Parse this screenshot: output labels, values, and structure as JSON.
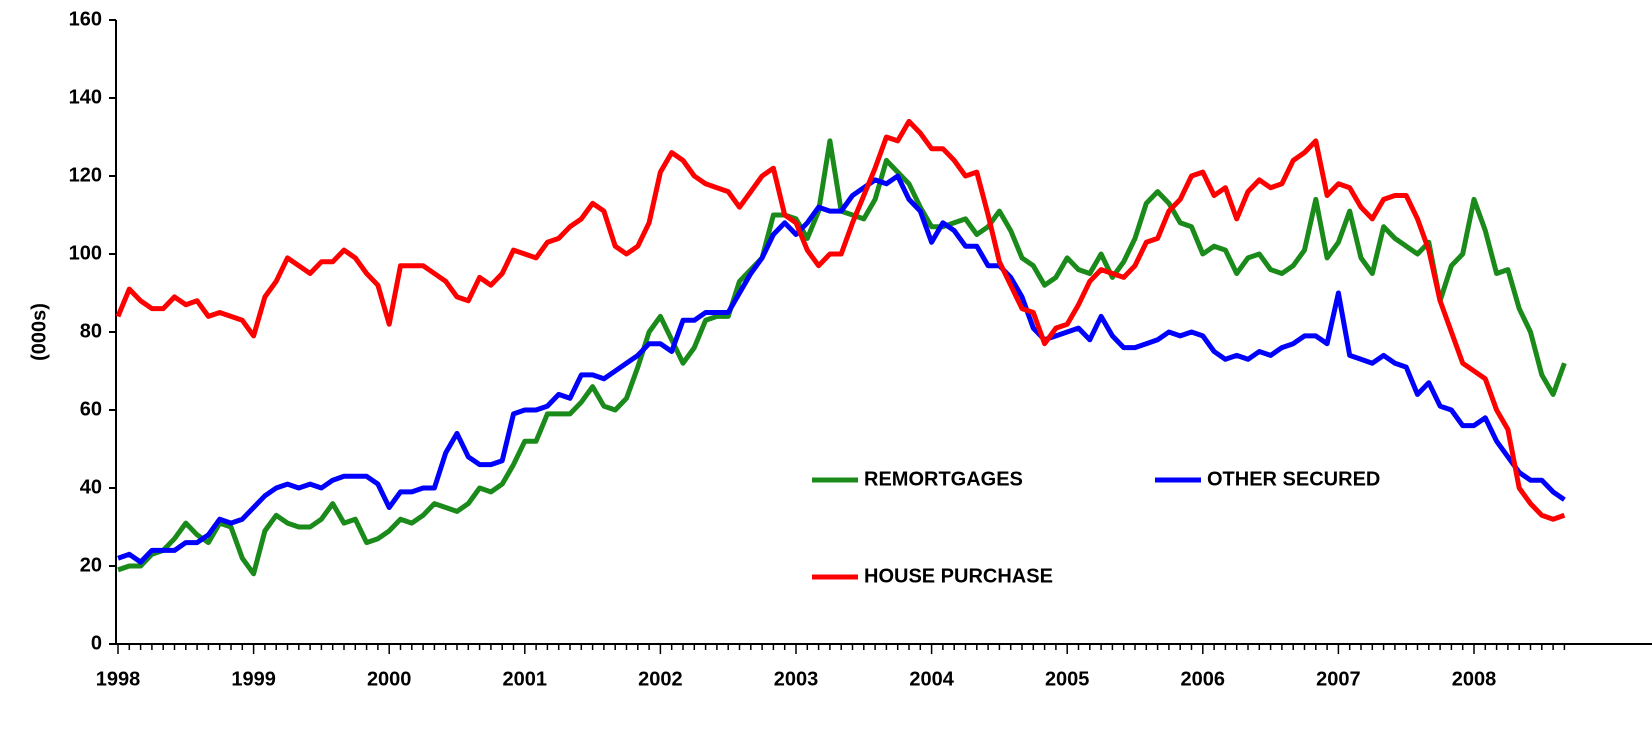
{
  "chart_data": {
    "type": "line",
    "y_label": "(000s)",
    "categories": [
      "1998",
      null,
      null,
      null,
      null,
      null,
      null,
      null,
      null,
      null,
      null,
      null,
      "1999",
      null,
      null,
      null,
      null,
      null,
      null,
      null,
      null,
      null,
      null,
      null,
      "2000",
      null,
      null,
      null,
      null,
      null,
      null,
      null,
      null,
      null,
      null,
      null,
      "2001",
      null,
      null,
      null,
      null,
      null,
      null,
      null,
      null,
      null,
      null,
      null,
      "2002",
      null,
      null,
      null,
      null,
      null,
      null,
      null,
      null,
      null,
      null,
      null,
      "2003",
      null,
      null,
      null,
      null,
      null,
      null,
      null,
      null,
      null,
      null,
      null,
      "2004",
      null,
      null,
      null,
      null,
      null,
      null,
      null,
      null,
      null,
      null,
      null,
      "2005",
      null,
      null,
      null,
      null,
      null,
      null,
      null,
      null,
      null,
      null,
      null,
      "2006",
      null,
      null,
      null,
      null,
      null,
      null,
      null,
      null,
      null,
      null,
      null,
      "2007",
      null,
      null,
      null,
      null,
      null,
      null,
      null,
      null,
      null,
      null,
      null,
      "2008",
      null,
      null,
      null,
      null,
      null,
      null,
      null,
      null
    ],
    "ylim": [
      0,
      160
    ],
    "yticks": [
      0,
      20,
      40,
      60,
      80,
      100,
      120,
      140,
      160
    ],
    "series": [
      {
        "name": "REMORTGAGES",
        "color": "#1a8a1a",
        "values": [
          19,
          20,
          20,
          23,
          24,
          27,
          31,
          28,
          26,
          31,
          30,
          22,
          18,
          29,
          33,
          31,
          30,
          30,
          32,
          36,
          31,
          32,
          26,
          27,
          29,
          32,
          31,
          33,
          36,
          35,
          34,
          36,
          40,
          39,
          41,
          46,
          52,
          52,
          59,
          59,
          59,
          62,
          66,
          61,
          60,
          63,
          71,
          80,
          84,
          78,
          72,
          76,
          83,
          84,
          84,
          93,
          96,
          99,
          110,
          110,
          109,
          104,
          111,
          129,
          111,
          110,
          109,
          114,
          124,
          121,
          118,
          112,
          107,
          107,
          108,
          109,
          105,
          107,
          111,
          106,
          99,
          97,
          92,
          94,
          99,
          96,
          95,
          100,
          94,
          98,
          104,
          113,
          116,
          113,
          108,
          107,
          100,
          102,
          101,
          95,
          99,
          100,
          96,
          95,
          97,
          101,
          114,
          99,
          103,
          111,
          99,
          95,
          107,
          104,
          102,
          100,
          103,
          88,
          97,
          100,
          114,
          106,
          95,
          96,
          86,
          80,
          69,
          64,
          72
        ]
      },
      {
        "name": "OTHER SECURED",
        "color": "#0000ff",
        "values": [
          22,
          23,
          21,
          24,
          24,
          24,
          26,
          26,
          28,
          32,
          31,
          32,
          35,
          38,
          40,
          41,
          40,
          41,
          40,
          42,
          43,
          43,
          43,
          41,
          35,
          39,
          39,
          40,
          40,
          49,
          54,
          48,
          46,
          46,
          47,
          59,
          60,
          60,
          61,
          64,
          63,
          69,
          69,
          68,
          70,
          72,
          74,
          77,
          77,
          75,
          83,
          83,
          85,
          85,
          85,
          90,
          95,
          99,
          105,
          108,
          105,
          108,
          112,
          111,
          111,
          115,
          117,
          119,
          118,
          120,
          114,
          111,
          103,
          108,
          106,
          102,
          102,
          97,
          97,
          94,
          89,
          81,
          78,
          79,
          80,
          81,
          78,
          84,
          79,
          76,
          76,
          77,
          78,
          80,
          79,
          80,
          79,
          75,
          73,
          74,
          73,
          75,
          74,
          76,
          77,
          79,
          79,
          77,
          90,
          74,
          73,
          72,
          74,
          72,
          71,
          64,
          67,
          61,
          60,
          56,
          56,
          58,
          52,
          48,
          44,
          42,
          42,
          39,
          37
        ]
      },
      {
        "name": "HOUSE PURCHASE",
        "color": "#ff0000",
        "values": [
          84,
          91,
          88,
          86,
          86,
          89,
          87,
          88,
          84,
          85,
          84,
          83,
          79,
          89,
          93,
          99,
          97,
          95,
          98,
          98,
          101,
          99,
          95,
          92,
          82,
          97,
          97,
          97,
          95,
          93,
          89,
          88,
          94,
          92,
          95,
          101,
          100,
          99,
          103,
          104,
          107,
          109,
          113,
          111,
          102,
          100,
          102,
          108,
          121,
          126,
          124,
          120,
          118,
          117,
          116,
          112,
          116,
          120,
          122,
          110,
          108,
          101,
          97,
          100,
          100,
          108,
          115,
          122,
          130,
          129,
          134,
          131,
          127,
          127,
          124,
          120,
          121,
          110,
          98,
          92,
          86,
          85,
          77,
          81,
          82,
          87,
          93,
          96,
          95,
          94,
          97,
          103,
          104,
          111,
          114,
          120,
          121,
          115,
          117,
          109,
          116,
          119,
          117,
          118,
          124,
          126,
          129,
          115,
          118,
          117,
          112,
          109,
          114,
          115,
          115,
          109,
          101,
          88,
          80,
          72,
          70,
          68,
          60,
          55,
          40,
          36,
          33,
          32,
          33
        ]
      }
    ]
  }
}
